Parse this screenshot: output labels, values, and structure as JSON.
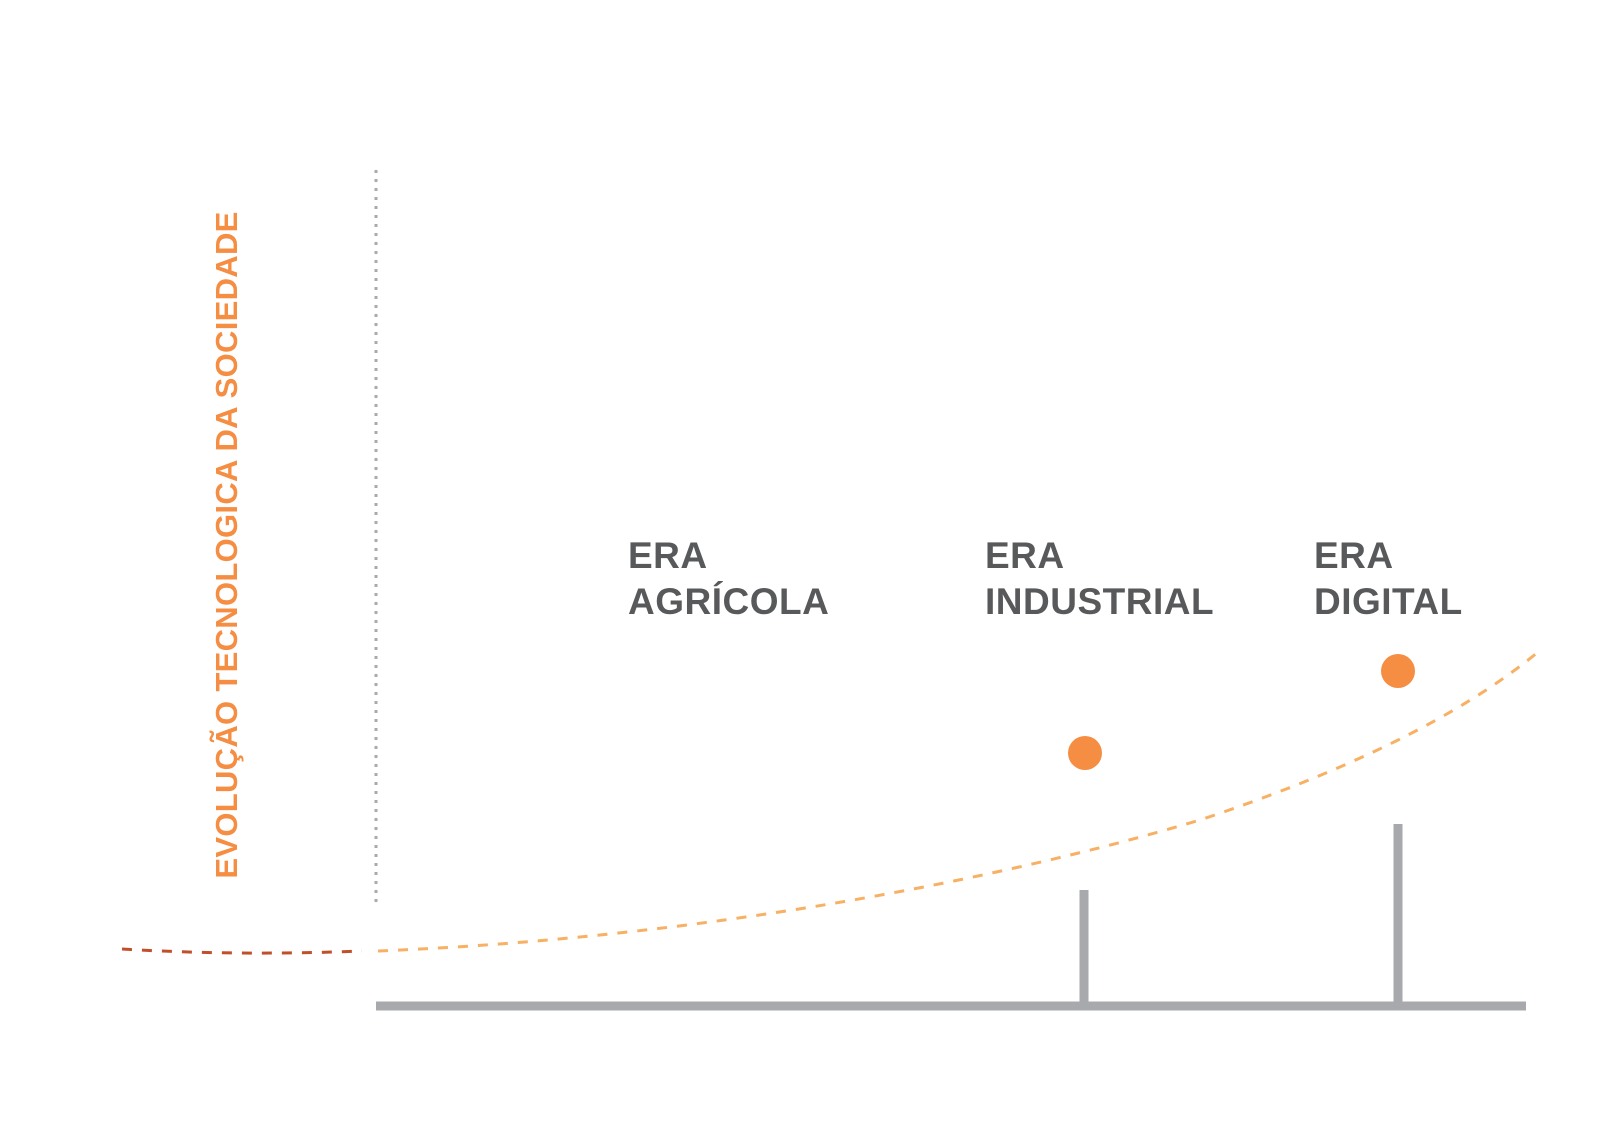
{
  "y_axis_title": "EVOLUÇÃO TECNOLOGICA DA SOCIEDADE",
  "eras": [
    {
      "line1": "ERA",
      "line2": "AGRÍCOLA"
    },
    {
      "line1": "ERA",
      "line2": "INDUSTRIAL"
    },
    {
      "line1": "ERA",
      "line2": "DIGITAL"
    }
  ],
  "colors": {
    "accent": "#f58d42",
    "curve_early": "#c1502a",
    "curve_light": "#f7b064",
    "axis": "#a7a9ac",
    "axis_dotted": "#a7a9ac",
    "label_text": "#58595b"
  }
}
